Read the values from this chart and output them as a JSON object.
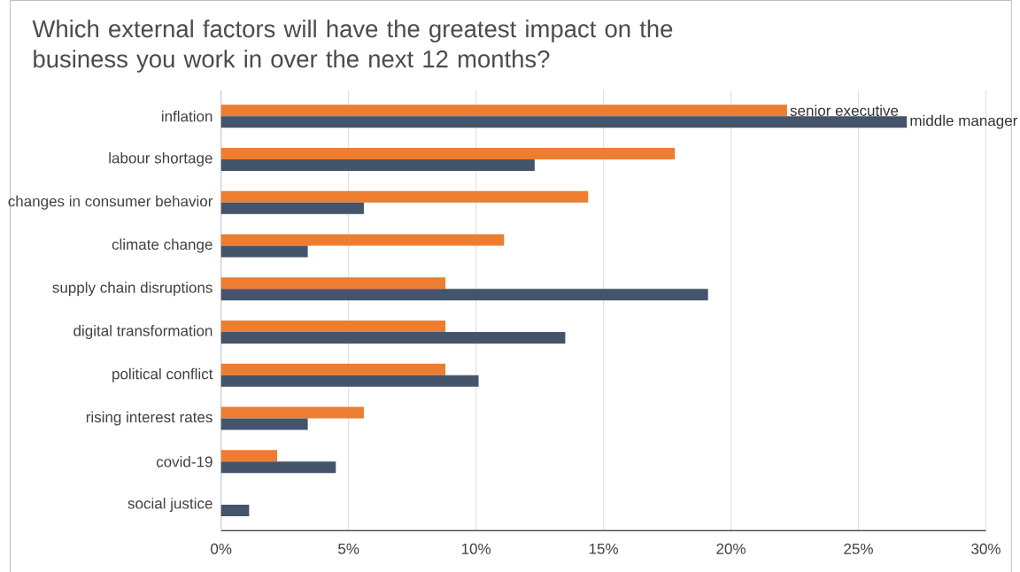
{
  "chart_data": {
    "type": "bar",
    "orientation": "horizontal",
    "title": "Which external factors will have the greatest impact on the business you work in over the next 12 months?",
    "categories": [
      "inflation",
      "labour shortage",
      "changes in consumer behavior",
      "climate change",
      "supply chain disruptions",
      "digital transformation",
      "political conflict",
      "rising interest rates",
      "covid-19",
      "social justice"
    ],
    "series": [
      {
        "name": "senior executive",
        "color": "#ed7d31",
        "values": [
          22.2,
          17.8,
          14.4,
          11.1,
          8.8,
          8.8,
          8.8,
          5.6,
          2.2,
          0
        ]
      },
      {
        "name": "middle manager",
        "color": "#44546a",
        "values": [
          26.9,
          12.3,
          5.6,
          3.4,
          19.1,
          13.5,
          10.1,
          3.4,
          4.5,
          1.1
        ]
      }
    ],
    "xlim": [
      0,
      30
    ],
    "xticks": [
      {
        "value": 0,
        "label": "0%"
      },
      {
        "value": 5,
        "label": "5%"
      },
      {
        "value": 10,
        "label": "10%"
      },
      {
        "value": 15,
        "label": "15%"
      },
      {
        "value": 20,
        "label": "20%"
      },
      {
        "value": 25,
        "label": "25%"
      },
      {
        "value": 30,
        "label": "30%"
      }
    ],
    "grid": "x",
    "legend": false
  }
}
